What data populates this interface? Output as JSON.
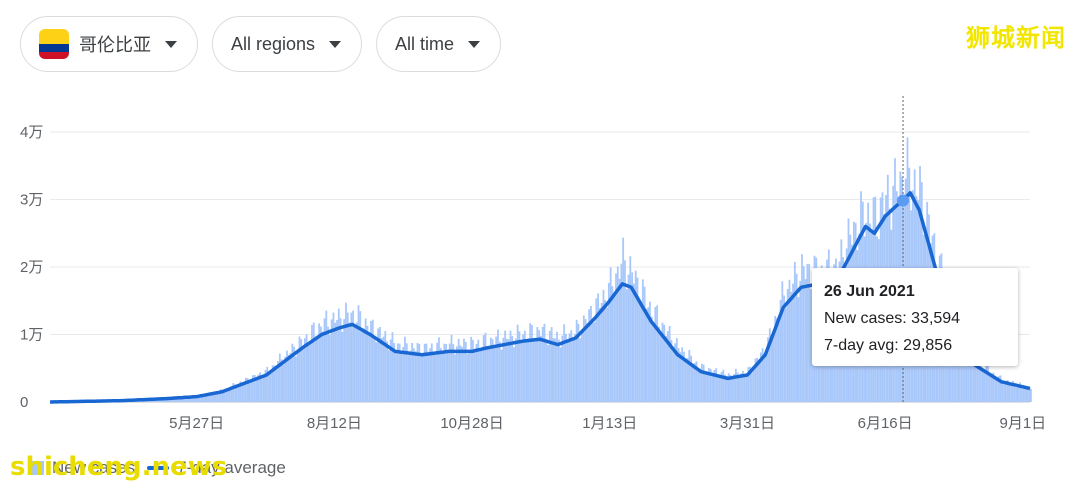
{
  "filters": {
    "country": "哥伦比亚",
    "region": "All regions",
    "time": "All time"
  },
  "watermarks": {
    "top": "狮城新闻",
    "bottom": "shicheng.news"
  },
  "tooltip": {
    "date": "26 Jun 2021",
    "new_cases": "New cases: 33,594",
    "avg": "7-day avg: 29,856"
  },
  "legend": {
    "bars": "New cases",
    "line": "7-day average"
  },
  "colors": {
    "bars": "#a8c7fa",
    "line": "#1967d2",
    "grid": "#e8eaed"
  },
  "chart_data": {
    "type": "bar",
    "x_start": "2020-03-06",
    "x_end": "2021-09-05",
    "ylim": [
      0,
      40000
    ],
    "yticks": [
      {
        "v": 0,
        "label": "0"
      },
      {
        "v": 10000,
        "label": "1万"
      },
      {
        "v": 20000,
        "label": "2万"
      },
      {
        "v": 30000,
        "label": "3万"
      },
      {
        "v": 40000,
        "label": "4万"
      }
    ],
    "xticks": [
      {
        "date": "2020-05-27",
        "label": "5月27日"
      },
      {
        "date": "2020-08-12",
        "label": "8月12日"
      },
      {
        "date": "2020-10-28",
        "label": "10月28日"
      },
      {
        "date": "2021-01-13",
        "label": "1月13日"
      },
      {
        "date": "2021-03-31",
        "label": "3月31日"
      },
      {
        "date": "2021-06-16",
        "label": "6月16日"
      },
      {
        "date": "2021-09-01",
        "label": "9月1日"
      }
    ],
    "highlight": {
      "date": "2021-06-26",
      "value": 33594,
      "avg": 29856
    },
    "series": [
      {
        "name": "7-day average",
        "points": [
          [
            "2020-03-06",
            0
          ],
          [
            "2020-04-15",
            200
          ],
          [
            "2020-05-10",
            500
          ],
          [
            "2020-05-27",
            800
          ],
          [
            "2020-06-10",
            1500
          ],
          [
            "2020-06-25",
            3000
          ],
          [
            "2020-07-05",
            4000
          ],
          [
            "2020-07-15",
            6000
          ],
          [
            "2020-07-25",
            8000
          ],
          [
            "2020-08-05",
            10000
          ],
          [
            "2020-08-15",
            11000
          ],
          [
            "2020-08-22",
            11500
          ],
          [
            "2020-09-01",
            10000
          ],
          [
            "2020-09-15",
            7500
          ],
          [
            "2020-09-30",
            7000
          ],
          [
            "2020-10-15",
            7500
          ],
          [
            "2020-10-28",
            7500
          ],
          [
            "2020-11-05",
            8000
          ],
          [
            "2020-11-15",
            8500
          ],
          [
            "2020-11-25",
            9000
          ],
          [
            "2020-12-05",
            9300
          ],
          [
            "2020-12-15",
            8500
          ],
          [
            "2020-12-25",
            9500
          ],
          [
            "2021-01-05",
            12500
          ],
          [
            "2021-01-13",
            15000
          ],
          [
            "2021-01-20",
            17500
          ],
          [
            "2021-01-25",
            17000
          ],
          [
            "2021-02-05",
            12000
          ],
          [
            "2021-02-20",
            7000
          ],
          [
            "2021-03-05",
            4500
          ],
          [
            "2021-03-20",
            3500
          ],
          [
            "2021-03-31",
            4000
          ],
          [
            "2021-04-10",
            7000
          ],
          [
            "2021-04-20",
            14000
          ],
          [
            "2021-04-30",
            17000
          ],
          [
            "2021-05-10",
            17500
          ],
          [
            "2021-05-20",
            18000
          ],
          [
            "2021-05-28",
            22000
          ],
          [
            "2021-06-05",
            26000
          ],
          [
            "2021-06-10",
            25000
          ],
          [
            "2021-06-16",
            27500
          ],
          [
            "2021-06-22",
            29000
          ],
          [
            "2021-06-26",
            29856
          ],
          [
            "2021-06-30",
            31000
          ],
          [
            "2021-07-05",
            28500
          ],
          [
            "2021-07-15",
            19000
          ],
          [
            "2021-07-25",
            10000
          ],
          [
            "2021-08-05",
            5500
          ],
          [
            "2021-08-20",
            3000
          ],
          [
            "2021-09-05",
            2000
          ]
        ]
      },
      {
        "name": "New cases",
        "points": [
          [
            "2020-03-06",
            0
          ],
          [
            "2020-04-15",
            250
          ],
          [
            "2020-05-10",
            600
          ],
          [
            "2020-05-27",
            900
          ],
          [
            "2020-06-10",
            1700
          ],
          [
            "2020-06-25",
            3400
          ],
          [
            "2020-07-05",
            4500
          ],
          [
            "2020-07-15",
            6800
          ],
          [
            "2020-07-25",
            9000
          ],
          [
            "2020-08-05",
            11500
          ],
          [
            "2020-08-15",
            12500
          ],
          [
            "2020-08-22",
            13000
          ],
          [
            "2020-09-01",
            11000
          ],
          [
            "2020-09-15",
            8500
          ],
          [
            "2020-09-30",
            7800
          ],
          [
            "2020-10-15",
            8500
          ],
          [
            "2020-10-28",
            8500
          ],
          [
            "2020-11-05",
            9000
          ],
          [
            "2020-11-15",
            9500
          ],
          [
            "2020-11-25",
            10000
          ],
          [
            "2020-12-05",
            10500
          ],
          [
            "2020-12-15",
            9500
          ],
          [
            "2020-12-25",
            10500
          ],
          [
            "2021-01-05",
            14000
          ],
          [
            "2021-01-13",
            17000
          ],
          [
            "2021-01-20",
            21000
          ],
          [
            "2021-01-25",
            19000
          ],
          [
            "2021-02-05",
            13500
          ],
          [
            "2021-02-20",
            8000
          ],
          [
            "2021-03-05",
            5000
          ],
          [
            "2021-03-20",
            4000
          ],
          [
            "2021-03-31",
            4500
          ],
          [
            "2021-04-10",
            8000
          ],
          [
            "2021-04-20",
            16000
          ],
          [
            "2021-04-30",
            19500
          ],
          [
            "2021-05-10",
            19000
          ],
          [
            "2021-05-20",
            20000
          ],
          [
            "2021-05-28",
            25000
          ],
          [
            "2021-06-05",
            28000
          ],
          [
            "2021-06-10",
            27000
          ],
          [
            "2021-06-16",
            30000
          ],
          [
            "2021-06-22",
            31500
          ],
          [
            "2021-06-26",
            33594
          ],
          [
            "2021-06-30",
            33000
          ],
          [
            "2021-07-05",
            31000
          ],
          [
            "2021-07-15",
            21000
          ],
          [
            "2021-07-25",
            11500
          ],
          [
            "2021-08-05",
            6000
          ],
          [
            "2021-08-20",
            3200
          ],
          [
            "2021-09-05",
            2100
          ]
        ]
      }
    ]
  }
}
